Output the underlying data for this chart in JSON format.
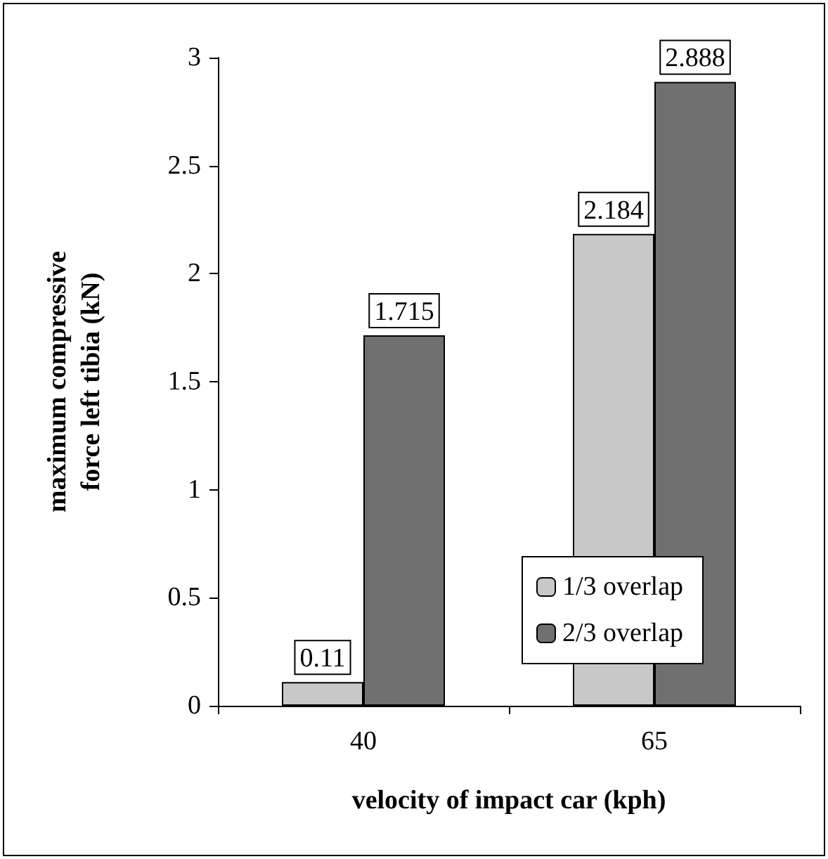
{
  "chart_data": {
    "type": "bar",
    "xlabel": "velocity of impact car (kph)",
    "ylabel": "maximum compressive force left tibia (kN)",
    "categories": [
      "40",
      "65"
    ],
    "series": [
      {
        "name": "1/3 overlap",
        "color": "#c8c8c8",
        "values": [
          0.11,
          2.184
        ]
      },
      {
        "name": "2/3 overlap",
        "color": "#707070",
        "values": [
          1.715,
          2.888
        ]
      }
    ],
    "ylim": [
      0,
      3
    ],
    "yticks": [
      0,
      0.5,
      1,
      1.5,
      2,
      2.5,
      3
    ],
    "grid": false,
    "legend": "bottom right",
    "data_labels": true
  }
}
